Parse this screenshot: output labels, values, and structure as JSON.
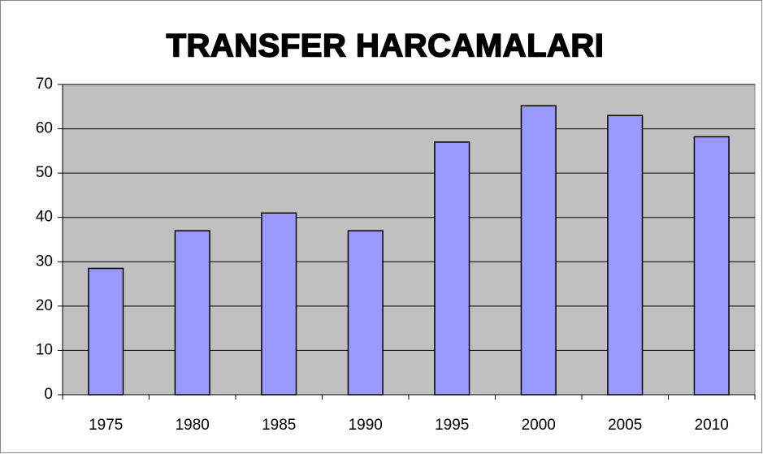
{
  "chart_data": {
    "type": "bar",
    "title": "TRANSFER HARCAMALARI",
    "categories": [
      "1975",
      "1980",
      "1985",
      "1990",
      "1995",
      "2000",
      "2005",
      "2010"
    ],
    "values": [
      28.5,
      37,
      41,
      37,
      57,
      65.2,
      63,
      58.2
    ],
    "color": "#9999ff",
    "ylim": [
      0,
      70
    ],
    "yticks": [
      0,
      10,
      20,
      30,
      40,
      50,
      60,
      70
    ],
    "grid": true
  }
}
